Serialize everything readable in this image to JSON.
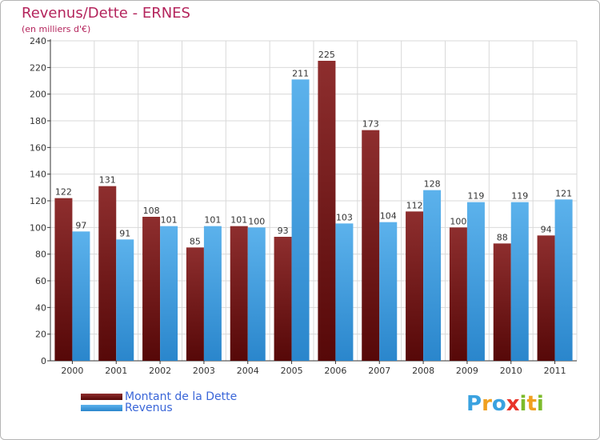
{
  "title": "Revenus/Dette - ERNES",
  "subtitle": "(en milliers d'€)",
  "logo": {
    "text": "Proxiti",
    "letters": [
      {
        "ch": "P",
        "color": "#3aa2e0"
      },
      {
        "ch": "r",
        "color": "#f0a020"
      },
      {
        "ch": "o",
        "color": "#3aa2e0"
      },
      {
        "ch": "x",
        "color": "#e8342a"
      },
      {
        "ch": "i",
        "color": "#7dbb2b"
      },
      {
        "ch": "t",
        "color": "#f0a020"
      },
      {
        "ch": "i",
        "color": "#7dbb2b"
      }
    ]
  },
  "legend": [
    {
      "label": "Montant de la Dette",
      "color": "#6e1414"
    },
    {
      "label": "Revenus",
      "color": "#3d9de0"
    }
  ],
  "chart_data": {
    "type": "bar",
    "title": "Revenus/Dette - ERNES",
    "subtitle": "(en milliers d'€)",
    "categories": [
      "2000",
      "2001",
      "2002",
      "2003",
      "2004",
      "2005",
      "2006",
      "2007",
      "2008",
      "2009",
      "2010",
      "2011"
    ],
    "series": [
      {
        "name": "Montant de la Dette",
        "color": "#6e1414",
        "values": [
          122,
          131,
          108,
          85,
          101,
          93,
          225,
          173,
          112,
          100,
          88,
          94
        ]
      },
      {
        "name": "Revenus",
        "color": "#3d9de0",
        "values": [
          97,
          91,
          101,
          101,
          100,
          211,
          103,
          104,
          128,
          119,
          119,
          121
        ]
      }
    ],
    "ylim": [
      0,
      240
    ],
    "yticks": [
      0,
      20,
      40,
      60,
      80,
      100,
      120,
      140,
      160,
      180,
      200,
      220,
      240
    ],
    "grid": true,
    "legend_position": "bottom-left"
  }
}
